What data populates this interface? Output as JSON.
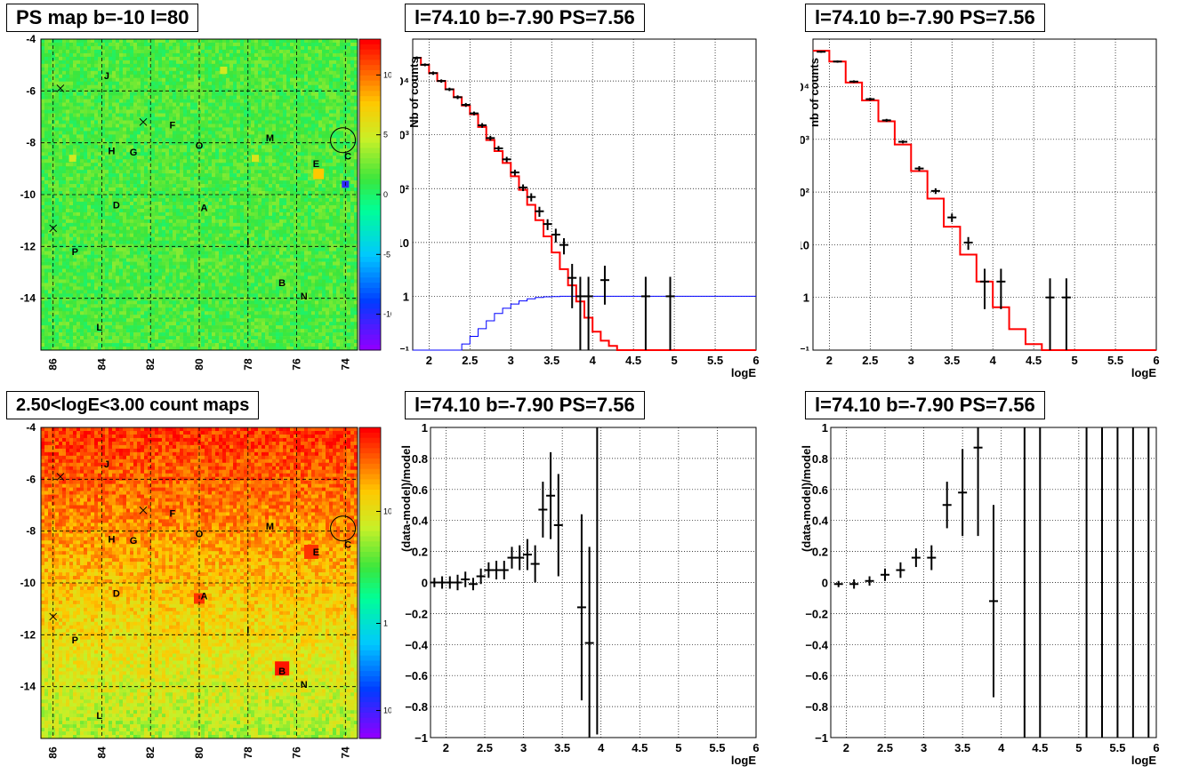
{
  "titles": {
    "ps_map": "PS map b=-10 l=80",
    "count_map": "2.50<logE<3.00 count maps",
    "spec_left": "l=74.10 b=-7.90 PS=7.56",
    "spec_right": "l=74.10 b=-7.90 PS=7.56",
    "res_left": "l=74.10 b=-7.90 PS=7.56",
    "res_right": "l=74.10 b=-7.90 PS=7.56"
  },
  "labels": {
    "nb_counts_left": "Nb of counts",
    "nb_counts_right": "nb of counts",
    "residual_y": "(data-model)/model",
    "logE": "logE"
  },
  "maps": {
    "x_ticks": [
      "86",
      "84",
      "82",
      "80",
      "78",
      "76",
      "74"
    ],
    "y_ticks": [
      "-4",
      "-6",
      "-8",
      "-10",
      "-12",
      "-14"
    ],
    "ps_colz_ticks": [
      "10",
      "5",
      "0",
      "-5",
      "-10"
    ],
    "count_colz_ticks": [
      "10",
      "1",
      "10⁻¹"
    ],
    "sources": [
      {
        "name": "J",
        "l": 83.8,
        "b": -5.4
      },
      {
        "name": "F",
        "l": 81.1,
        "b": -7.3
      },
      {
        "name": "H",
        "l": 83.6,
        "b": -8.3
      },
      {
        "name": "G",
        "l": 82.7,
        "b": -8.35
      },
      {
        "name": "O",
        "l": 80.0,
        "b": -8.1
      },
      {
        "name": "M",
        "l": 77.1,
        "b": -7.8
      },
      {
        "name": "E",
        "l": 75.2,
        "b": -8.8
      },
      {
        "name": "C",
        "l": 73.9,
        "b": -8.5
      },
      {
        "name": "D",
        "l": 83.4,
        "b": -10.4
      },
      {
        "name": "A",
        "l": 79.8,
        "b": -10.5
      },
      {
        "name": "P",
        "l": 85.1,
        "b": -12.2
      },
      {
        "name": "I",
        "l": 78.0,
        "b": -11.8
      },
      {
        "name": "B",
        "l": 76.6,
        "b": -13.4
      },
      {
        "name": "N",
        "l": 75.7,
        "b": -13.9
      },
      {
        "name": "L",
        "l": 84.1,
        "b": -15.1
      }
    ],
    "crosses": [
      {
        "l": 85.7,
        "b": -5.9
      },
      {
        "l": 82.3,
        "b": -7.2
      },
      {
        "l": 86.0,
        "b": -11.3
      }
    ],
    "circle": {
      "l": 74.1,
      "b": -7.9
    }
  },
  "colors": {
    "model": "#ff0000",
    "data": "#000000",
    "ps_curve": "#0000ff"
  },
  "chart_data": [
    {
      "type": "heatmap",
      "title": "PS map b=-10 l=80",
      "xlim": [
        86.5,
        73.5
      ],
      "ylim": [
        -16,
        -4
      ],
      "z_range": [
        -13,
        13
      ]
    },
    {
      "type": "line",
      "title": "l=74.10 b=-7.90 PS=7.56",
      "xlabel": "logE",
      "ylabel": "Nb of counts",
      "xlim": [
        1.8,
        6
      ],
      "ylim": [
        0.1,
        60000
      ],
      "log_y": true,
      "model_edges": [
        1.8,
        1.9,
        2.0,
        2.1,
        2.2,
        2.3,
        2.4,
        2.5,
        2.6,
        2.7,
        2.8,
        2.9,
        3.0,
        3.1,
        3.2,
        3.3,
        3.4,
        3.5,
        3.6,
        3.7,
        3.8,
        3.9,
        4.0,
        4.1,
        4.2,
        4.3,
        4.4,
        4.5,
        6.0
      ],
      "model": [
        27000,
        20000,
        14000,
        10000,
        7000,
        5000,
        3500,
        2400,
        1400,
        800,
        500,
        300,
        170,
        95,
        50,
        26,
        13,
        6.5,
        3.2,
        1.6,
        0.8,
        0.4,
        0.22,
        0.15,
        0.12,
        0.1,
        0.1,
        0.1
      ],
      "ps_edges": [
        1.8,
        2.4,
        2.5,
        2.6,
        2.7,
        2.8,
        2.9,
        3.0,
        3.1,
        3.2,
        3.3,
        3.4,
        3.5,
        3.6,
        3.7,
        3.8,
        6.0
      ],
      "ps": [
        0.1,
        0.13,
        0.18,
        0.25,
        0.35,
        0.48,
        0.6,
        0.72,
        0.82,
        0.9,
        0.95,
        0.98,
        0.99,
        1.0,
        1.0,
        1.0
      ],
      "data": [
        {
          "x": 1.85,
          "y": 27000,
          "lo": 25500,
          "hi": 28500
        },
        {
          "x": 1.95,
          "y": 20000,
          "lo": 18800,
          "hi": 21200
        },
        {
          "x": 2.05,
          "y": 14000,
          "lo": 13000,
          "hi": 15000
        },
        {
          "x": 2.15,
          "y": 10000,
          "lo": 9300,
          "hi": 10700
        },
        {
          "x": 2.25,
          "y": 7000,
          "lo": 6500,
          "hi": 7500
        },
        {
          "x": 2.35,
          "y": 5000,
          "lo": 4600,
          "hi": 5400
        },
        {
          "x": 2.45,
          "y": 3600,
          "lo": 3300,
          "hi": 3900
        },
        {
          "x": 2.55,
          "y": 2500,
          "lo": 2300,
          "hi": 2700
        },
        {
          "x": 2.65,
          "y": 1500,
          "lo": 1350,
          "hi": 1650
        },
        {
          "x": 2.75,
          "y": 870,
          "lo": 780,
          "hi": 960
        },
        {
          "x": 2.85,
          "y": 560,
          "lo": 500,
          "hi": 620
        },
        {
          "x": 2.95,
          "y": 350,
          "lo": 310,
          "hi": 390
        },
        {
          "x": 3.05,
          "y": 200,
          "lo": 175,
          "hi": 225
        },
        {
          "x": 3.15,
          "y": 105,
          "lo": 90,
          "hi": 120
        },
        {
          "x": 3.25,
          "y": 70,
          "lo": 58,
          "hi": 82
        },
        {
          "x": 3.35,
          "y": 38,
          "lo": 30,
          "hi": 46
        },
        {
          "x": 3.45,
          "y": 22,
          "lo": 17,
          "hi": 27
        },
        {
          "x": 3.55,
          "y": 14,
          "lo": 10,
          "hi": 18
        },
        {
          "x": 3.65,
          "y": 9,
          "lo": 6,
          "hi": 12
        },
        {
          "x": 3.75,
          "y": 2.2,
          "lo": 0.6,
          "hi": 4
        },
        {
          "x": 3.85,
          "y": 1,
          "lo": 0.1,
          "hi": 2.3
        },
        {
          "x": 3.95,
          "y": 1,
          "lo": 0.1,
          "hi": 2.3
        },
        {
          "x": 4.15,
          "y": 2,
          "lo": 0.7,
          "hi": 3.7
        },
        {
          "x": 4.65,
          "y": 1,
          "lo": 0.1,
          "hi": 2.3
        },
        {
          "x": 4.95,
          "y": 1,
          "lo": 0.1,
          "hi": 2.3
        }
      ]
    },
    {
      "type": "line",
      "title": "l=74.10 b=-7.90 PS=7.56",
      "xlabel": "logE",
      "ylabel": "nb of counts",
      "xlim": [
        1.8,
        6
      ],
      "ylim": [
        0.1,
        80000
      ],
      "log_y": true,
      "model_edges": [
        1.8,
        2.0,
        2.2,
        2.4,
        2.6,
        2.8,
        3.0,
        3.2,
        3.4,
        3.6,
        3.8,
        4.0,
        4.2,
        4.4,
        4.6,
        6.0
      ],
      "model": [
        48000,
        30000,
        12000,
        5500,
        2200,
        800,
        250,
        75,
        22,
        6.5,
        2,
        0.65,
        0.25,
        0.13,
        0.1
      ],
      "data": [
        {
          "x": 1.9,
          "y": 46000,
          "lo": 44000,
          "hi": 48000
        },
        {
          "x": 2.1,
          "y": 30000,
          "lo": 28500,
          "hi": 31500
        },
        {
          "x": 2.3,
          "y": 12500,
          "lo": 11800,
          "hi": 13200
        },
        {
          "x": 2.5,
          "y": 5800,
          "lo": 5400,
          "hi": 6200
        },
        {
          "x": 2.7,
          "y": 2300,
          "lo": 2150,
          "hi": 2450
        },
        {
          "x": 2.9,
          "y": 900,
          "lo": 840,
          "hi": 960
        },
        {
          "x": 3.1,
          "y": 280,
          "lo": 250,
          "hi": 310
        },
        {
          "x": 3.3,
          "y": 105,
          "lo": 92,
          "hi": 118
        },
        {
          "x": 3.5,
          "y": 33,
          "lo": 27,
          "hi": 39
        },
        {
          "x": 3.7,
          "y": 11,
          "lo": 8,
          "hi": 14
        },
        {
          "x": 3.9,
          "y": 2,
          "lo": 0.6,
          "hi": 3.5
        },
        {
          "x": 4.1,
          "y": 2,
          "lo": 0.6,
          "hi": 3.5
        },
        {
          "x": 4.7,
          "y": 1,
          "lo": 0.1,
          "hi": 2.3
        },
        {
          "x": 4.9,
          "y": 1,
          "lo": 0.1,
          "hi": 2.3
        }
      ]
    },
    {
      "type": "scatter",
      "title": "l=74.10 b=-7.90 PS=7.56",
      "xlabel": "logE",
      "ylabel": "(data-model)/model",
      "xlim": [
        1.8,
        6
      ],
      "ylim": [
        -1,
        1
      ],
      "data": [
        {
          "x": 1.85,
          "y": 0.0,
          "err": 0.03
        },
        {
          "x": 1.95,
          "y": 0.0,
          "err": 0.04
        },
        {
          "x": 2.05,
          "y": 0.0,
          "err": 0.04
        },
        {
          "x": 2.15,
          "y": 0.0,
          "err": 0.05
        },
        {
          "x": 2.25,
          "y": 0.02,
          "err": 0.05
        },
        {
          "x": 2.35,
          "y": -0.01,
          "err": 0.04
        },
        {
          "x": 2.45,
          "y": 0.04,
          "err": 0.05
        },
        {
          "x": 2.55,
          "y": 0.08,
          "err": 0.05
        },
        {
          "x": 2.65,
          "y": 0.08,
          "err": 0.06
        },
        {
          "x": 2.75,
          "y": 0.08,
          "err": 0.06
        },
        {
          "x": 2.85,
          "y": 0.16,
          "err": 0.07
        },
        {
          "x": 2.95,
          "y": 0.16,
          "err": 0.08
        },
        {
          "x": 3.05,
          "y": 0.18,
          "err": 0.1
        },
        {
          "x": 3.15,
          "y": 0.12,
          "err": 0.12
        },
        {
          "x": 3.25,
          "y": 0.47,
          "err": 0.18
        },
        {
          "x": 3.35,
          "y": 0.56,
          "err": 0.28
        },
        {
          "x": 3.45,
          "y": 0.37,
          "err": 0.33
        },
        {
          "x": 3.75,
          "y": -0.16,
          "err": 0.6
        },
        {
          "x": 3.85,
          "y": -0.39,
          "err": 0.62
        },
        {
          "x": 3.95,
          "y": 0.62,
          "err": 1.6
        }
      ]
    },
    {
      "type": "scatter",
      "title": "l=74.10 b=-7.90 PS=7.56",
      "xlabel": "logE",
      "ylabel": "(data-model)/model",
      "xlim": [
        1.8,
        6
      ],
      "ylim": [
        -1,
        1
      ],
      "data": [
        {
          "x": 1.9,
          "y": -0.01,
          "err": 0.02
        },
        {
          "x": 2.1,
          "y": -0.01,
          "err": 0.03
        },
        {
          "x": 2.3,
          "y": 0.01,
          "err": 0.03
        },
        {
          "x": 2.5,
          "y": 0.05,
          "err": 0.04
        },
        {
          "x": 2.7,
          "y": 0.08,
          "err": 0.05
        },
        {
          "x": 2.9,
          "y": 0.16,
          "err": 0.06
        },
        {
          "x": 3.1,
          "y": 0.16,
          "err": 0.08
        },
        {
          "x": 3.3,
          "y": 0.5,
          "err": 0.15
        },
        {
          "x": 3.5,
          "y": 0.58,
          "err": 0.28
        },
        {
          "x": 3.7,
          "y": 0.87,
          "err": 0.57
        },
        {
          "x": 3.9,
          "y": -0.12,
          "err": 0.62
        },
        {
          "x": 4.3,
          "y": 0,
          "err": 2
        },
        {
          "x": 4.5,
          "y": 0,
          "err": 2
        },
        {
          "x": 5.1,
          "y": 0,
          "err": 2
        },
        {
          "x": 5.3,
          "y": 0,
          "err": 2
        },
        {
          "x": 5.5,
          "y": 0,
          "err": 2
        },
        {
          "x": 5.7,
          "y": 0,
          "err": 2
        },
        {
          "x": 5.9,
          "y": 0,
          "err": 2
        }
      ]
    }
  ]
}
